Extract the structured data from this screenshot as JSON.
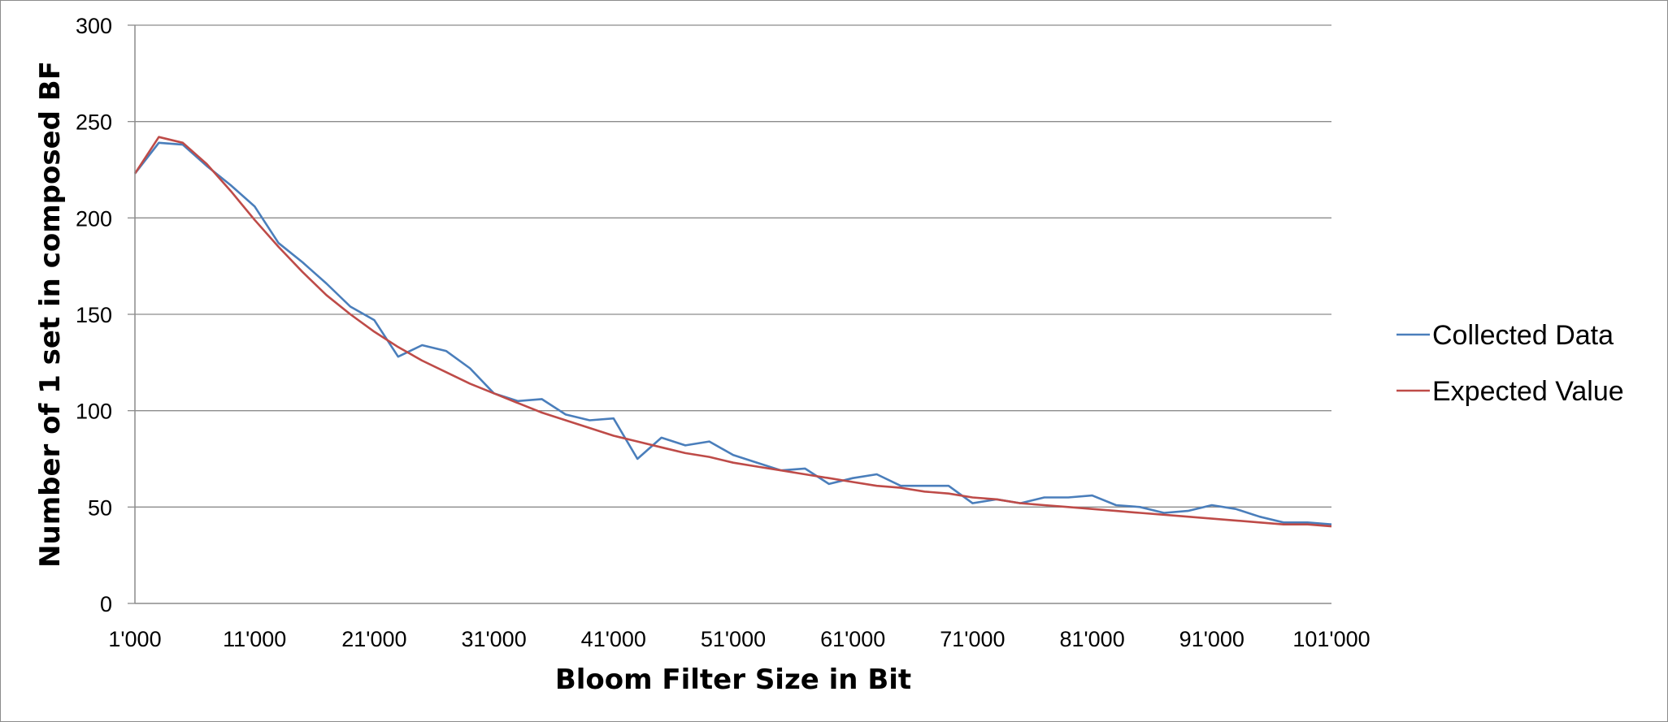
{
  "chart_data": {
    "type": "line",
    "title": "",
    "xlabel": "Bloom Filter Size in Bit",
    "ylabel": "Number of 1 set in composed BF",
    "xlim": [
      1000,
      101000
    ],
    "ylim": [
      0,
      300
    ],
    "x_ticks": [
      1000,
      11000,
      21000,
      31000,
      41000,
      51000,
      61000,
      71000,
      81000,
      91000,
      101000
    ],
    "x_tick_labels": [
      "1'000",
      "11'000",
      "21'000",
      "31'000",
      "41'000",
      "51'000",
      "61'000",
      "71'000",
      "81'000",
      "91'000",
      "101'000"
    ],
    "y_ticks": [
      0,
      50,
      100,
      150,
      200,
      250,
      300
    ],
    "y_tick_labels": [
      "0",
      "50",
      "100",
      "150",
      "200",
      "250",
      "300"
    ],
    "grid": "horizontal",
    "legend_position": "right",
    "series": [
      {
        "name": "Collected Data",
        "color": "#4a7ebb",
        "x": [
          1000,
          3000,
          5000,
          7000,
          9000,
          11000,
          13000,
          15000,
          17000,
          19000,
          21000,
          23000,
          25000,
          27000,
          29000,
          31000,
          33000,
          35000,
          37000,
          39000,
          41000,
          43000,
          45000,
          47000,
          49000,
          51000,
          53000,
          55000,
          57000,
          59000,
          61000,
          63000,
          65000,
          67000,
          69000,
          71000,
          73000,
          75000,
          77000,
          79000,
          81000,
          83000,
          85000,
          87000,
          89000,
          91000,
          93000,
          95000,
          97000,
          99000,
          101000
        ],
        "y": [
          223,
          239,
          238,
          227,
          217,
          206,
          187,
          177,
          166,
          154,
          147,
          128,
          134,
          131,
          122,
          109,
          105,
          106,
          98,
          95,
          96,
          75,
          86,
          82,
          84,
          77,
          73,
          69,
          70,
          62,
          65,
          67,
          61,
          61,
          61,
          52,
          54,
          52,
          55,
          55,
          56,
          51,
          50,
          47,
          48,
          51,
          49,
          45,
          42,
          42,
          41
        ]
      },
      {
        "name": "Expected Value",
        "color": "#be4b48",
        "x": [
          1000,
          3000,
          5000,
          7000,
          9000,
          11000,
          13000,
          15000,
          17000,
          19000,
          21000,
          23000,
          25000,
          27000,
          29000,
          31000,
          33000,
          35000,
          37000,
          39000,
          41000,
          43000,
          45000,
          47000,
          49000,
          51000,
          53000,
          55000,
          57000,
          59000,
          61000,
          63000,
          65000,
          67000,
          69000,
          71000,
          73000,
          75000,
          77000,
          79000,
          81000,
          83000,
          85000,
          87000,
          89000,
          91000,
          93000,
          95000,
          97000,
          99000,
          101000
        ],
        "y": [
          223,
          242,
          239,
          228,
          214,
          199,
          185,
          172,
          160,
          150,
          141,
          133,
          126,
          120,
          114,
          109,
          104,
          99,
          95,
          91,
          87,
          84,
          81,
          78,
          76,
          73,
          71,
          69,
          67,
          65,
          63,
          61,
          60,
          58,
          57,
          55,
          54,
          52,
          51,
          50,
          49,
          48,
          47,
          46,
          45,
          44,
          43,
          42,
          41,
          41,
          40
        ]
      }
    ]
  }
}
